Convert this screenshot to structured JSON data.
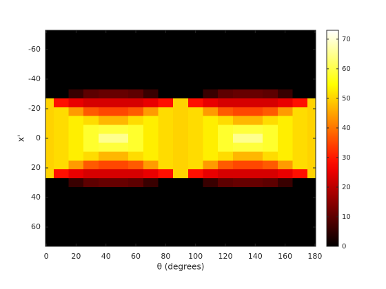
{
  "chart_data": {
    "type": "heatmap",
    "colormap": "hot",
    "xlabel": "θ (degrees)",
    "ylabel": "x'",
    "x": [
      0,
      10,
      20,
      30,
      40,
      50,
      60,
      70,
      80,
      90,
      100,
      110,
      120,
      130,
      140,
      150,
      160,
      170,
      180
    ],
    "y": [
      -72,
      -66,
      -60,
      -54,
      -48,
      -42,
      -36,
      -30,
      -24,
      -18,
      -12,
      -6,
      0,
      6,
      12,
      18,
      24,
      30,
      36,
      42,
      48,
      54,
      60,
      66,
      72
    ],
    "z": [
      [
        0,
        0,
        0,
        0,
        0,
        0,
        0,
        0,
        50,
        50,
        50,
        50,
        50,
        50,
        50,
        50,
        50,
        0,
        0,
        0,
        0,
        0,
        0,
        0,
        0
      ],
      [
        0,
        0,
        0,
        0,
        0,
        0,
        0,
        0,
        29,
        51,
        51,
        51,
        51,
        51,
        51,
        51,
        29,
        0,
        0,
        0,
        0,
        0,
        0,
        0,
        0
      ],
      [
        0,
        0,
        0,
        0,
        0,
        0,
        0,
        6,
        25,
        44,
        53,
        53,
        53,
        53,
        53,
        44,
        25,
        6,
        0,
        0,
        0,
        0,
        0,
        0,
        0
      ],
      [
        0,
        0,
        0,
        0,
        0,
        0,
        0,
        10,
        23,
        37,
        51,
        58,
        58,
        58,
        51,
        37,
        23,
        10,
        0,
        0,
        0,
        0,
        0,
        0,
        0
      ],
      [
        0,
        0,
        0,
        0,
        0,
        0,
        0,
        11,
        23,
        35,
        47,
        59,
        65,
        59,
        47,
        35,
        23,
        11,
        0,
        0,
        0,
        0,
        0,
        0,
        0
      ],
      [
        0,
        0,
        0,
        0,
        0,
        0,
        0,
        11,
        23,
        35,
        47,
        59,
        65,
        59,
        47,
        35,
        23,
        11,
        0,
        0,
        0,
        0,
        0,
        0,
        0
      ],
      [
        0,
        0,
        0,
        0,
        0,
        0,
        0,
        10,
        23,
        37,
        51,
        58,
        58,
        58,
        51,
        37,
        23,
        10,
        0,
        0,
        0,
        0,
        0,
        0,
        0
      ],
      [
        0,
        0,
        0,
        0,
        0,
        0,
        0,
        6,
        25,
        44,
        53,
        53,
        53,
        53,
        53,
        44,
        25,
        6,
        0,
        0,
        0,
        0,
        0,
        0,
        0
      ],
      [
        0,
        0,
        0,
        0,
        0,
        0,
        0,
        0,
        29,
        51,
        51,
        51,
        51,
        51,
        51,
        51,
        29,
        0,
        0,
        0,
        0,
        0,
        0,
        0,
        0
      ],
      [
        0,
        0,
        0,
        0,
        0,
        0,
        0,
        0,
        50,
        50,
        50,
        50,
        50,
        50,
        50,
        50,
        50,
        0,
        0,
        0,
        0,
        0,
        0,
        0,
        0
      ],
      [
        0,
        0,
        0,
        0,
        0,
        0,
        0,
        0,
        29,
        51,
        51,
        51,
        51,
        51,
        51,
        51,
        29,
        0,
        0,
        0,
        0,
        0,
        0,
        0,
        0
      ],
      [
        0,
        0,
        0,
        0,
        0,
        0,
        0,
        6,
        25,
        44,
        53,
        53,
        53,
        53,
        53,
        44,
        25,
        6,
        0,
        0,
        0,
        0,
        0,
        0,
        0
      ],
      [
        0,
        0,
        0,
        0,
        0,
        0,
        0,
        10,
        23,
        37,
        51,
        58,
        58,
        58,
        51,
        37,
        23,
        10,
        0,
        0,
        0,
        0,
        0,
        0,
        0
      ],
      [
        0,
        0,
        0,
        0,
        0,
        0,
        0,
        11,
        23,
        35,
        47,
        59,
        65,
        59,
        47,
        35,
        23,
        11,
        0,
        0,
        0,
        0,
        0,
        0,
        0
      ],
      [
        0,
        0,
        0,
        0,
        0,
        0,
        0,
        11,
        23,
        35,
        47,
        59,
        65,
        59,
        47,
        35,
        23,
        11,
        0,
        0,
        0,
        0,
        0,
        0,
        0
      ],
      [
        0,
        0,
        0,
        0,
        0,
        0,
        0,
        10,
        23,
        37,
        51,
        58,
        58,
        58,
        51,
        37,
        23,
        10,
        0,
        0,
        0,
        0,
        0,
        0,
        0
      ],
      [
        0,
        0,
        0,
        0,
        0,
        0,
        0,
        6,
        25,
        44,
        53,
        53,
        53,
        53,
        53,
        44,
        25,
        6,
        0,
        0,
        0,
        0,
        0,
        0,
        0
      ],
      [
        0,
        0,
        0,
        0,
        0,
        0,
        0,
        0,
        29,
        51,
        51,
        51,
        51,
        51,
        51,
        51,
        29,
        0,
        0,
        0,
        0,
        0,
        0,
        0,
        0
      ],
      [
        0,
        0,
        0,
        0,
        0,
        0,
        0,
        0,
        50,
        50,
        50,
        50,
        50,
        50,
        50,
        50,
        50,
        0,
        0,
        0,
        0,
        0,
        0,
        0,
        0
      ]
    ],
    "xlim": [
      -0.5,
      180.5
    ],
    "xticks": [
      0,
      20,
      40,
      60,
      80,
      100,
      120,
      140,
      160,
      180
    ],
    "ylim": [
      -73,
      73
    ],
    "yticks": [
      -60,
      -40,
      -20,
      0,
      20,
      40,
      60
    ],
    "y_reversed": true,
    "clim": [
      0,
      73
    ],
    "cticks": [
      0,
      10,
      20,
      30,
      40,
      50,
      60,
      70
    ]
  }
}
